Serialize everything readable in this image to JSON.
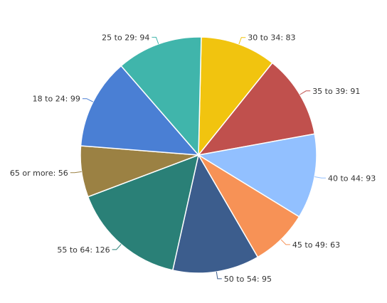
{
  "chart_data": {
    "type": "pie",
    "title": "",
    "slices": [
      {
        "label": "30 to 34",
        "value": 83,
        "color": "#f1c40f"
      },
      {
        "label": "35 to 39",
        "value": 91,
        "color": "#c0504d"
      },
      {
        "label": "40 to 44",
        "value": 93,
        "color": "#92c0ff"
      },
      {
        "label": "45 to 49",
        "value": 63,
        "color": "#f79256"
      },
      {
        "label": "50 to 54",
        "value": 95,
        "color": "#3c5d8d"
      },
      {
        "label": "55 to 64",
        "value": 126,
        "color": "#2a8077"
      },
      {
        "label": "65 or more",
        "value": 56,
        "color": "#9b8143"
      },
      {
        "label": "18 to 24",
        "value": 99,
        "color": "#4a7fd4"
      },
      {
        "label": "25 to 29",
        "value": 94,
        "color": "#40b5ab"
      }
    ],
    "data_labels": [
      "30 to 34: 83",
      "35 to 39: 91",
      "40 to 44: 93",
      "45 to 49: 63",
      "50 to 54: 95",
      "55 to 64: 126",
      "65 or more: 56",
      "18 to 24: 99",
      "25 to 29: 94"
    ]
  }
}
